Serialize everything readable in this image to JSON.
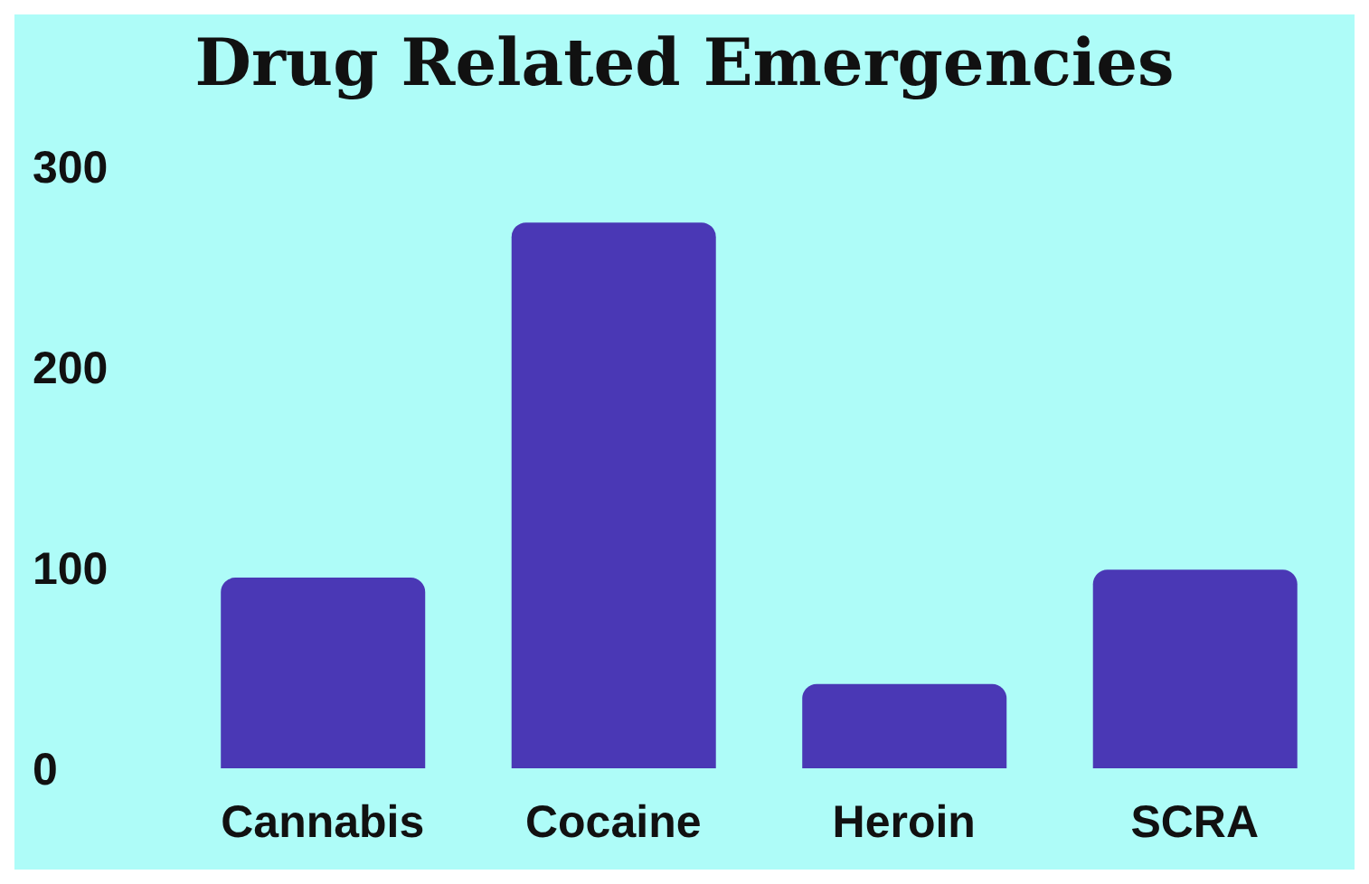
{
  "chart_data": {
    "type": "bar",
    "title": "Drug Related Emergencies",
    "categories": [
      "Cannabis",
      "Cocaine",
      "Heroin",
      "SCRA"
    ],
    "values": [
      95,
      272,
      42,
      99
    ],
    "color": "#4a38b5",
    "ylim": [
      0,
      300
    ],
    "yticks": [
      0,
      100,
      200,
      300
    ],
    "grid": false
  }
}
